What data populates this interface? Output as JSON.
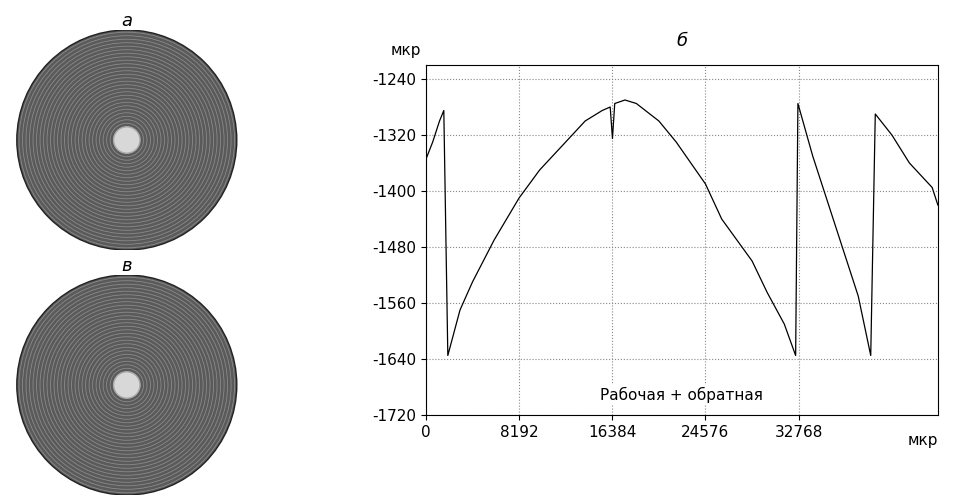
{
  "chart_data": {
    "type": "line",
    "title": "б",
    "y_label": "мкр",
    "x_label": "мкр",
    "annotation": "Рабочая + обратная",
    "x": [
      0,
      600,
      1200,
      1577,
      1930,
      3000,
      4096,
      6000,
      8192,
      10000,
      12288,
      14000,
      15500,
      16200,
      16400,
      16600,
      17500,
      18500,
      20480,
      22000,
      24576,
      26000,
      28672,
      30000,
      31500,
      32500,
      32700,
      34000,
      36000,
      38000,
      39100,
      39500,
      40960,
      42500,
      44500,
      45000
    ],
    "values": [
      -1355,
      -1330,
      -1300,
      -1285,
      -1635,
      -1570,
      -1530,
      -1470,
      -1410,
      -1370,
      -1330,
      -1300,
      -1285,
      -1280,
      -1325,
      -1275,
      -1270,
      -1275,
      -1300,
      -1330,
      -1390,
      -1440,
      -1500,
      -1545,
      -1590,
      -1635,
      -1275,
      -1350,
      -1450,
      -1550,
      -1635,
      -1290,
      -1320,
      -1360,
      -1395,
      -1420
    ],
    "color": "#000000",
    "xlim": [
      0,
      45000
    ],
    "xticks": [
      0,
      8192,
      16384,
      24576,
      32768
    ],
    "ylim": [
      -1720,
      -1220
    ],
    "yticks": [
      -1720,
      -1640,
      -1560,
      -1480,
      -1400,
      -1320,
      -1240
    ],
    "grid": true
  },
  "images": [
    {
      "label": "а"
    },
    {
      "label": "в"
    }
  ]
}
